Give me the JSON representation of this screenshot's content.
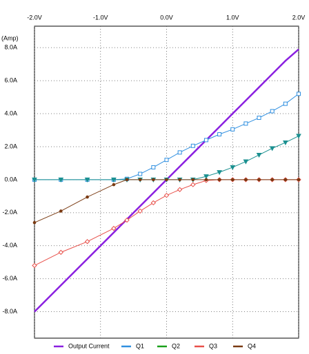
{
  "chart_data": {
    "type": "line",
    "y_label": "(Amp)",
    "x": [
      -2,
      -1.6,
      -1.2,
      -0.8,
      -0.6,
      -0.4,
      -0.2,
      0,
      0.2,
      0.4,
      0.6,
      0.8,
      1.0,
      1.2,
      1.4,
      1.6,
      1.8,
      2.0
    ],
    "series": [
      {
        "name": "Output Current",
        "color": "#8a1fe0",
        "width": 2.5,
        "values": [
          -8,
          -6.4,
          -4.8,
          -3.2,
          -2.4,
          -1.6,
          -0.8,
          0,
          0.8,
          1.6,
          2.4,
          3.2,
          4,
          4.8,
          5.6,
          6.4,
          7.2,
          7.9
        ]
      },
      {
        "name": "Q1",
        "color": "#2f8fe0",
        "marker": "square",
        "width": 1,
        "values": [
          0,
          0,
          0,
          0,
          0.05,
          0.35,
          0.75,
          1.2,
          1.65,
          2.05,
          2.4,
          2.75,
          3.05,
          3.4,
          3.75,
          4.15,
          4.6,
          5.2
        ]
      },
      {
        "name": "Q2",
        "color": "#1a9090",
        "legend_color": "#1aa01a",
        "marker": "triangle",
        "width": 1,
        "values": [
          0,
          0,
          0,
          0,
          0,
          0,
          0,
          0,
          0,
          0,
          0.2,
          0.45,
          0.75,
          1.1,
          1.5,
          1.9,
          2.25,
          2.65
        ]
      },
      {
        "name": "Q3",
        "color": "#e8504a",
        "marker": "diamond",
        "width": 1,
        "values": [
          -5.2,
          -4.4,
          -3.75,
          -2.95,
          -2.45,
          -1.9,
          -1.4,
          -0.95,
          -0.6,
          -0.3,
          -0.05,
          0,
          0,
          0,
          0,
          0,
          0,
          0
        ]
      },
      {
        "name": "Q4",
        "color": "#7a3a12",
        "marker": "circle",
        "width": 1,
        "values": [
          -2.6,
          -1.9,
          -1.05,
          -0.3,
          0,
          0,
          0,
          0,
          0,
          0,
          0,
          0,
          0,
          0,
          0,
          0,
          0,
          0
        ]
      }
    ],
    "xlim": [
      -2,
      2
    ],
    "xticks": [
      {
        "value": -2,
        "label": "-2.0V"
      },
      {
        "value": -1,
        "label": "-1.0V"
      },
      {
        "value": 0,
        "label": "0.0V"
      },
      {
        "value": 1,
        "label": "1.0V"
      },
      {
        "value": 2,
        "label": "2.0V"
      }
    ],
    "ylim": [
      -9.6,
      9.3
    ],
    "yticks": [
      {
        "value": 8,
        "label": "8.0A"
      },
      {
        "value": 6,
        "label": "6.0A"
      },
      {
        "value": 4,
        "label": "4.0A"
      },
      {
        "value": 2,
        "label": "2.0A"
      },
      {
        "value": 0,
        "label": "0.0A"
      },
      {
        "value": -2,
        "label": "-2.0A"
      },
      {
        "value": -4,
        "label": "-4.0A"
      },
      {
        "value": -6,
        "label": "-6.0A"
      },
      {
        "value": -8,
        "label": "-8.0A"
      }
    ],
    "grid": true,
    "legend": "bottom"
  }
}
